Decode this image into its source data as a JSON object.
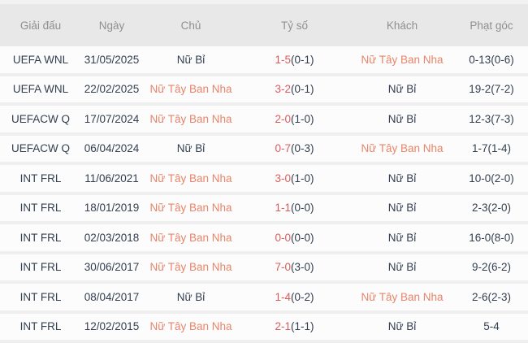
{
  "table": {
    "columns": [
      {
        "key": "tournament",
        "label": "Giải đấu"
      },
      {
        "key": "date",
        "label": "Ngày"
      },
      {
        "key": "home",
        "label": "Chủ"
      },
      {
        "key": "score",
        "label": "Tỷ số"
      },
      {
        "key": "away",
        "label": "Khách"
      },
      {
        "key": "corners",
        "label": "Phạt góc"
      }
    ],
    "rows": [
      {
        "tournament": "UEFA WNL",
        "date": "31/05/2025",
        "home": {
          "name": "Nữ Bỉ",
          "highlighted": false
        },
        "score": {
          "fulltime": "1-5",
          "halftime": "(0-1)"
        },
        "away": {
          "name": "Nữ Tây Ban Nha",
          "highlighted": true
        },
        "corners": "0-13(0-6)"
      },
      {
        "tournament": "UEFA WNL",
        "date": "22/02/2025",
        "home": {
          "name": "Nữ Tây Ban Nha",
          "highlighted": true
        },
        "score": {
          "fulltime": "3-2",
          "halftime": "(0-1)"
        },
        "away": {
          "name": "Nữ Bỉ",
          "highlighted": false
        },
        "corners": "19-2(7-2)"
      },
      {
        "tournament": "UEFACW Q",
        "date": "17/07/2024",
        "home": {
          "name": "Nữ Tây Ban Nha",
          "highlighted": true
        },
        "score": {
          "fulltime": "2-0",
          "halftime": "(1-0)"
        },
        "away": {
          "name": "Nữ Bỉ",
          "highlighted": false
        },
        "corners": "12-3(7-3)"
      },
      {
        "tournament": "UEFACW Q",
        "date": "06/04/2024",
        "home": {
          "name": "Nữ Bỉ",
          "highlighted": false
        },
        "score": {
          "fulltime": "0-7",
          "halftime": "(0-3)"
        },
        "away": {
          "name": "Nữ Tây Ban Nha",
          "highlighted": true
        },
        "corners": "1-7(1-4)"
      },
      {
        "tournament": "INT FRL",
        "date": "11/06/2021",
        "home": {
          "name": "Nữ Tây Ban Nha",
          "highlighted": true
        },
        "score": {
          "fulltime": "3-0",
          "halftime": "(1-0)"
        },
        "away": {
          "name": "Nữ Bỉ",
          "highlighted": false
        },
        "corners": "10-0(2-0)"
      },
      {
        "tournament": "INT FRL",
        "date": "18/01/2019",
        "home": {
          "name": "Nữ Tây Ban Nha",
          "highlighted": true
        },
        "score": {
          "fulltime": "1-1",
          "halftime": "(0-0)"
        },
        "away": {
          "name": "Nữ Bỉ",
          "highlighted": false
        },
        "corners": "2-3(2-0)"
      },
      {
        "tournament": "INT FRL",
        "date": "02/03/2018",
        "home": {
          "name": "Nữ Tây Ban Nha",
          "highlighted": true
        },
        "score": {
          "fulltime": "0-0",
          "halftime": "(0-0)"
        },
        "away": {
          "name": "Nữ Bỉ",
          "highlighted": false
        },
        "corners": "16-0(8-0)"
      },
      {
        "tournament": "INT FRL",
        "date": "30/06/2017",
        "home": {
          "name": "Nữ Tây Ban Nha",
          "highlighted": true
        },
        "score": {
          "fulltime": "7-0",
          "halftime": "(3-0)"
        },
        "away": {
          "name": "Nữ Bỉ",
          "highlighted": false
        },
        "corners": "9-2(6-2)"
      },
      {
        "tournament": "INT FRL",
        "date": "08/04/2017",
        "home": {
          "name": "Nữ Bỉ",
          "highlighted": false
        },
        "score": {
          "fulltime": "1-4",
          "halftime": "(0-2)"
        },
        "away": {
          "name": "Nữ Tây Ban Nha",
          "highlighted": true
        },
        "corners": "2-6(2-3)"
      },
      {
        "tournament": "INT FRL",
        "date": "12/02/2015",
        "home": {
          "name": "Nữ Tây Ban Nha",
          "highlighted": true
        },
        "score": {
          "fulltime": "2-1",
          "halftime": "(1-1)"
        },
        "away": {
          "name": "Nữ Bỉ",
          "highlighted": false
        },
        "corners": "5-4"
      }
    ]
  },
  "colors": {
    "highlight_team": "#e8856a",
    "score_accent": "#dc5c5c",
    "text_dark": "#333f50",
    "header_bg": "#e8e8e8",
    "header_text": "#8f8f8f",
    "row_bg": "#fcfcfc",
    "separator": "#efefef"
  }
}
